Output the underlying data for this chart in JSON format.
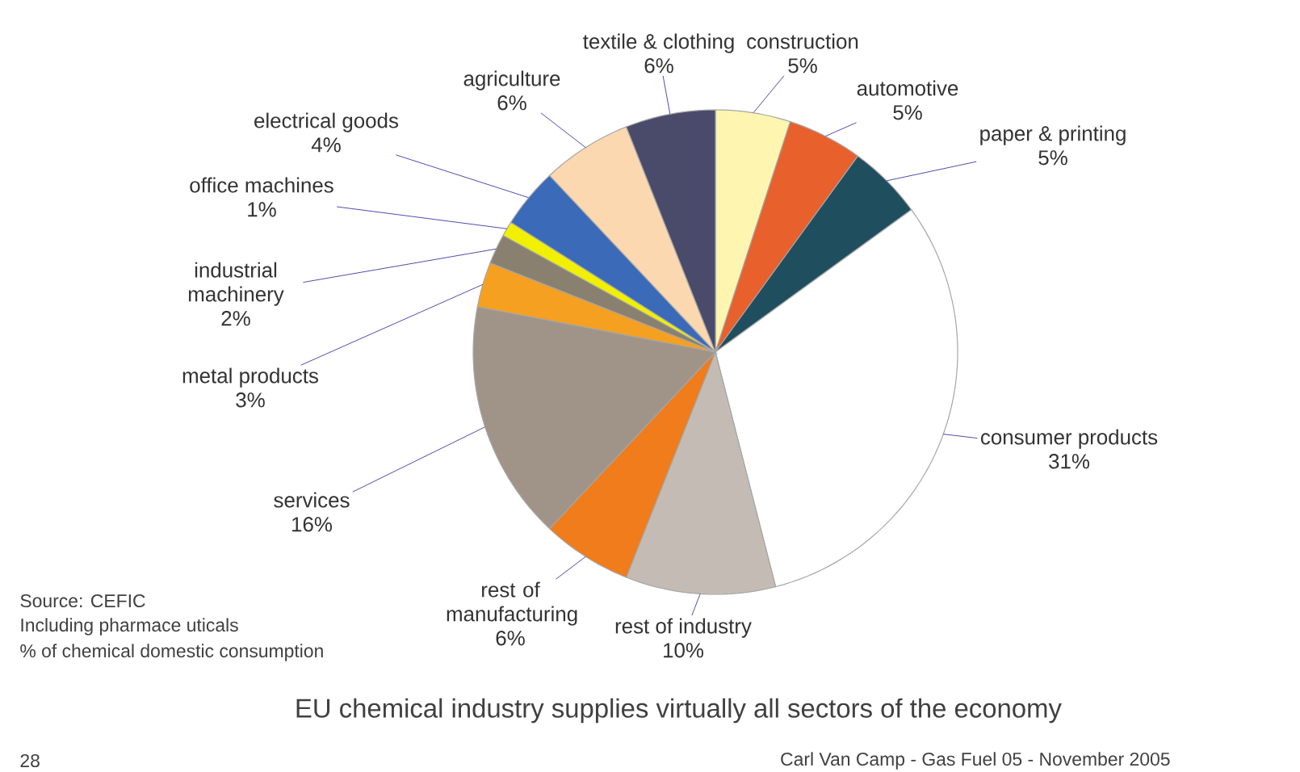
{
  "chart_data": {
    "type": "pie",
    "title": "EU chemical industry supplies virtually all sectors of the economy",
    "categories": [
      "construction",
      "automotive",
      "paper & printing",
      "consumer products",
      "rest of industry",
      "rest of manufacturing",
      "services",
      "metal products",
      "industrial machinery",
      "office machines",
      "electrical goods",
      "agriculture",
      "textile & clothing"
    ],
    "values": [
      5,
      5,
      5,
      31,
      10,
      6,
      16,
      3,
      2,
      1,
      4,
      6,
      6
    ],
    "value_labels": [
      "5%",
      "5%",
      "5%",
      "31%",
      "10%",
      "6%",
      "16%",
      "3%",
      "2%",
      "1%",
      "4%",
      "6%",
      "6%"
    ],
    "colors": [
      "#fdf5b0",
      "#e8602c",
      "#1f4e5f",
      "#ffffff",
      "#c4bcb4",
      "#f07c1c",
      "#a09488",
      "#f5a020",
      "#8a8070",
      "#f0f000",
      "#3a6ab8",
      "#fcd8b0",
      "#4a4a6a"
    ],
    "annotations": [
      "Source: CEFIC",
      "Including pharmace uticals",
      "% of chemical domestic consumption",
      "28",
      "Carl Van Camp - Gas Fuel 05 - November 2005"
    ]
  }
}
